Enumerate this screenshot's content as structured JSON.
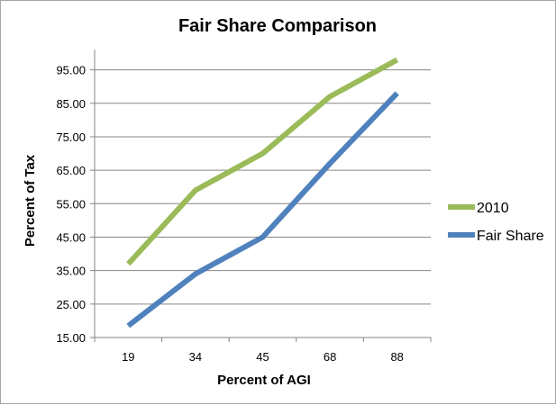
{
  "chart_data": {
    "type": "line",
    "title": "Fair Share Comparison",
    "xlabel": "Percent of AGI",
    "ylabel": "Percent of Tax",
    "categories": [
      "19",
      "34",
      "45",
      "68",
      "88"
    ],
    "y_ticks": [
      "15.00",
      "25.00",
      "35.00",
      "45.00",
      "55.00",
      "65.00",
      "75.00",
      "85.00",
      "95.00"
    ],
    "ylim": [
      15,
      100
    ],
    "grid": "horizontal",
    "legend_position": "right",
    "series": [
      {
        "name": "2010",
        "color": "#9bbb59",
        "values": [
          37,
          59,
          70,
          87,
          98
        ]
      },
      {
        "name": "Fair Share",
        "color": "#4f81bd",
        "values": [
          18.5,
          34,
          45,
          67,
          88
        ]
      }
    ]
  }
}
